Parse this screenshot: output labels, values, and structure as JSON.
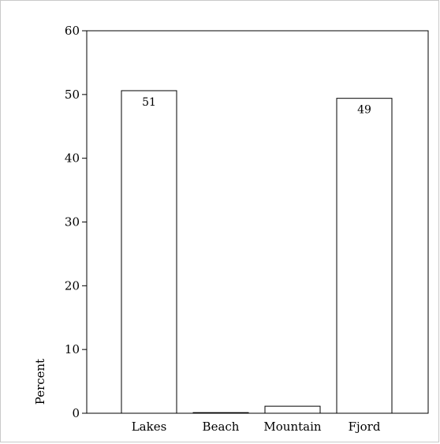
{
  "chart_data": {
    "type": "bar",
    "categories": [
      "Lakes",
      "Beach",
      "Mountain",
      "Fjord"
    ],
    "values": [
      50.6,
      0.1,
      1.1,
      49.4
    ],
    "data_labels": [
      "51",
      "",
      "",
      "49"
    ],
    "ylabel": "Percent",
    "xlabel": "",
    "ylim": [
      0,
      60
    ],
    "yticks": [
      0,
      10,
      20,
      30,
      40,
      50,
      60
    ],
    "grid": false,
    "legend": "none",
    "colors": {
      "bar_fill": "#ffffff",
      "bar_stroke": "#000000",
      "axis": "#000000"
    }
  }
}
